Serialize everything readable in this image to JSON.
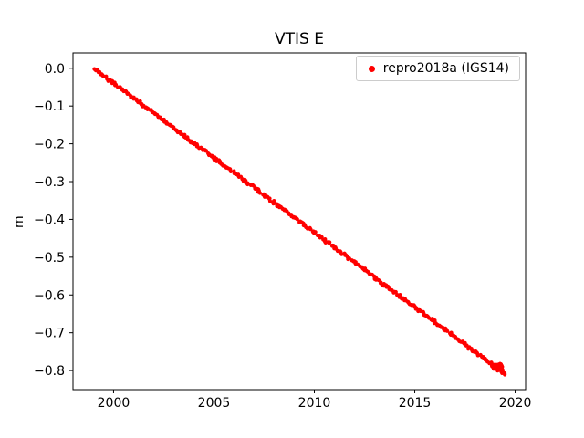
{
  "figure": {
    "background": "#ffffff"
  },
  "chart_data": {
    "type": "scatter",
    "title": "VTIS E",
    "xlabel": "",
    "ylabel": "m",
    "grid": false,
    "legend_position": "upper right",
    "xlim": [
      1997.98,
      2020.52
    ],
    "ylim": [
      -0.8505,
      0.0405
    ],
    "xticks": [
      2000,
      2005,
      2010,
      2015,
      2020
    ],
    "xtick_labels": [
      "2000",
      "2005",
      "2010",
      "2015",
      "2020"
    ],
    "yticks": [
      0.0,
      -0.1,
      -0.2,
      -0.3,
      -0.4,
      -0.5,
      -0.6,
      -0.7,
      -0.8
    ],
    "ytick_labels": [
      "0.0",
      "−0.1",
      "−0.2",
      "−0.3",
      "−0.4",
      "−0.5",
      "−0.6",
      "−0.7",
      "−0.8"
    ],
    "series": [
      {
        "name": "repro2018a (IGS14)",
        "color": "#ff0000",
        "marker": "dot",
        "x": [
          1999.0,
          1999.5,
          2000.0,
          2000.5,
          2001.0,
          2001.5,
          2002.0,
          2002.5,
          2003.0,
          2003.5,
          2004.0,
          2004.5,
          2005.0,
          2005.5,
          2006.0,
          2006.5,
          2007.0,
          2007.5,
          2008.0,
          2008.5,
          2009.0,
          2009.5,
          2010.0,
          2010.5,
          2011.0,
          2011.5,
          2012.0,
          2012.5,
          2013.0,
          2013.5,
          2014.0,
          2014.5,
          2015.0,
          2015.5,
          2016.0,
          2016.5,
          2017.0,
          2017.5,
          2018.0,
          2018.5,
          2019.0,
          2019.3,
          2019.5
        ],
        "y": [
          0.0,
          -0.02,
          -0.04,
          -0.059,
          -0.079,
          -0.099,
          -0.119,
          -0.138,
          -0.158,
          -0.178,
          -0.198,
          -0.217,
          -0.237,
          -0.257,
          -0.277,
          -0.296,
          -0.316,
          -0.336,
          -0.356,
          -0.375,
          -0.395,
          -0.415,
          -0.435,
          -0.454,
          -0.474,
          -0.494,
          -0.514,
          -0.533,
          -0.553,
          -0.573,
          -0.593,
          -0.612,
          -0.632,
          -0.652,
          -0.672,
          -0.691,
          -0.711,
          -0.731,
          -0.751,
          -0.77,
          -0.79,
          -0.802,
          -0.81
        ]
      }
    ]
  },
  "legend": {
    "label": "repro2018a (IGS14)",
    "marker_color": "#ff0000"
  }
}
